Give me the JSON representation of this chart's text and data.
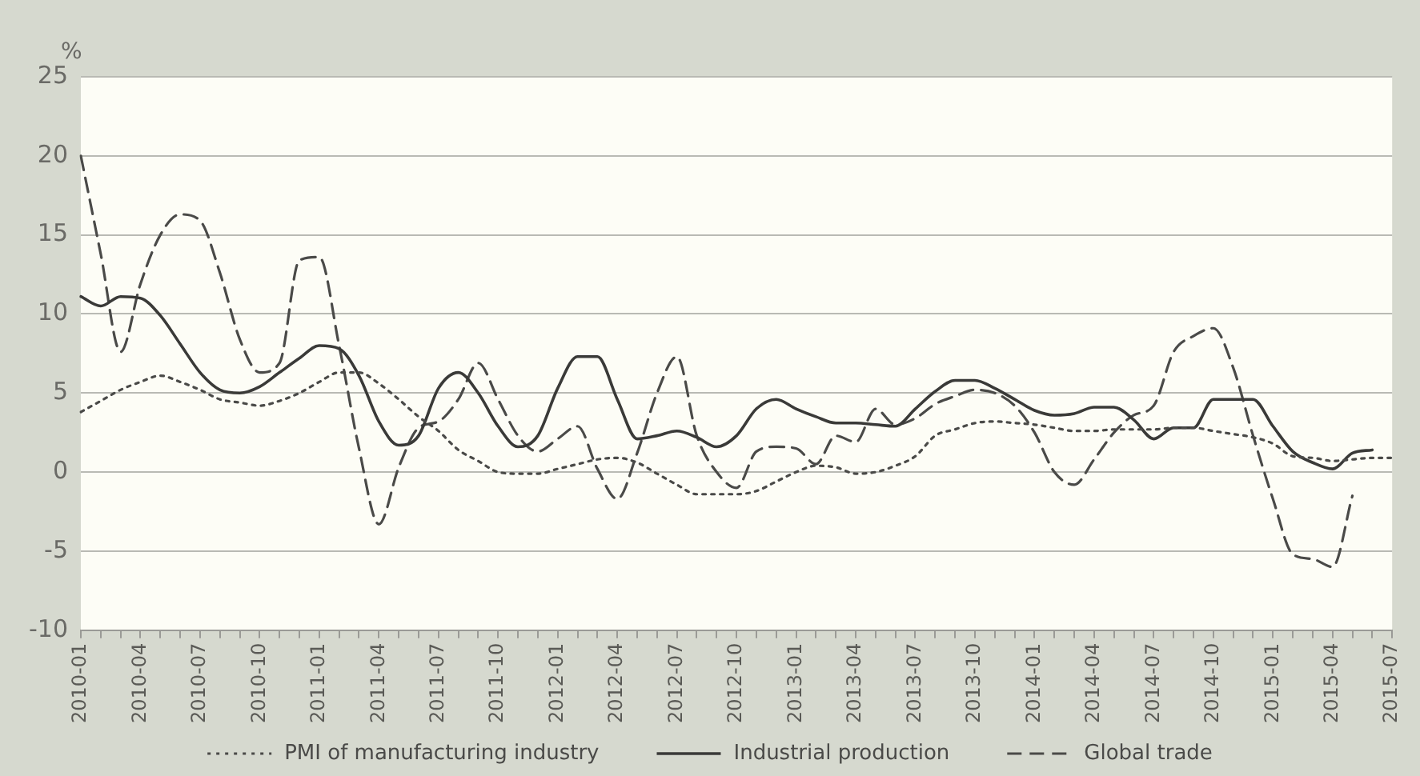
{
  "chart_data": {
    "type": "line",
    "ylabel": "%",
    "categories": [
      "2010-01",
      null,
      null,
      "2010-04",
      null,
      null,
      "2010-07",
      null,
      null,
      "2010-10",
      null,
      null,
      "2011-01",
      null,
      null,
      "2011-04",
      null,
      null,
      "2011-07",
      null,
      null,
      "2011-10",
      null,
      null,
      "2012-01",
      null,
      null,
      "2012-04",
      null,
      null,
      "2012-07",
      null,
      null,
      "2012-10",
      null,
      null,
      "2013-01",
      null,
      null,
      "2013-04",
      null,
      null,
      "2013-07",
      null,
      null,
      "2013-10",
      null,
      null,
      "2014-01",
      null,
      null,
      "2014-04",
      null,
      null,
      "2014-07",
      null,
      null,
      "2014-10",
      null,
      null,
      "2015-01",
      null,
      null,
      "2015-04",
      null,
      null,
      "2015-07"
    ],
    "series": [
      {
        "name": "PMI of manufacturing industry",
        "color": "#4a4a48",
        "line_style": "dotted",
        "values": [
          3.8,
          4.5,
          5.2,
          5.7,
          6.1,
          5.7,
          5.2,
          4.6,
          4.4,
          4.2,
          4.5,
          5.0,
          5.7,
          6.3,
          6.3,
          5.6,
          4.6,
          3.5,
          2.6,
          1.4,
          0.7,
          0.0,
          -0.1,
          -0.1,
          0.2,
          0.5,
          0.8,
          0.9,
          0.6,
          -0.1,
          -0.8,
          -1.4,
          -1.4,
          -1.4,
          -1.2,
          -0.6,
          0.0,
          0.4,
          0.3,
          -0.1,
          0.0,
          0.4,
          1.0,
          2.3,
          2.7,
          3.1,
          3.2,
          3.1,
          3.0,
          2.8,
          2.6,
          2.6,
          2.7,
          2.7,
          2.7,
          2.8,
          2.8,
          2.6,
          2.4,
          2.2,
          1.8,
          1.0,
          0.9,
          0.7,
          0.8,
          0.9,
          0.9
        ]
      },
      {
        "name": "Industrial production",
        "color": "#3a3a38",
        "line_style": "solid",
        "values": [
          11.1,
          10.5,
          11.1,
          11.0,
          9.9,
          8.1,
          6.3,
          5.2,
          5.0,
          5.4,
          6.3,
          7.2,
          8.0,
          7.8,
          6.1,
          3.2,
          1.7,
          2.3,
          5.3,
          6.3,
          5.0,
          2.9,
          1.6,
          2.3,
          5.3,
          7.3,
          7.3,
          4.6,
          2.1,
          2.3,
          2.6,
          2.2,
          1.6,
          2.3,
          4.0,
          4.6,
          4.0,
          3.5,
          3.1,
          3.1,
          3.0,
          2.9,
          4.0,
          5.1,
          5.8,
          5.8,
          5.3,
          4.6,
          3.9,
          3.6,
          3.7,
          4.1,
          4.1,
          3.3,
          2.1,
          2.8,
          2.8,
          4.6,
          4.6,
          4.6,
          2.9,
          1.3,
          0.6,
          0.2,
          1.2,
          1.4,
          null
        ]
      },
      {
        "name": "Global trade",
        "color": "#4a4a48",
        "line_style": "dashed",
        "values": [
          20,
          13.8,
          7.6,
          11.9,
          15.0,
          16.3,
          15.9,
          12.6,
          8.4,
          6.3,
          6.9,
          13.4,
          13.6,
          8.0,
          1.5,
          -3.3,
          0.3,
          2.8,
          3.2,
          4.6,
          6.9,
          4.6,
          2.3,
          1.3,
          2.1,
          2.9,
          0.2,
          -1.7,
          1.2,
          5.0,
          7.3,
          2.3,
          0.0,
          -1.0,
          1.3,
          1.6,
          1.5,
          0.5,
          2.3,
          1.9,
          4.0,
          3.0,
          3.4,
          4.3,
          4.8,
          5.2,
          5.0,
          4.2,
          2.5,
          0.0,
          -0.8,
          0.8,
          2.5,
          3.6,
          4.2,
          7.6,
          8.6,
          9.1,
          6.6,
          2.3,
          -1.7,
          -5.2,
          -5.5,
          -6.0,
          -1.5,
          null,
          null
        ]
      }
    ],
    "ylim": [
      -10,
      25
    ],
    "yticks": [
      -10,
      -5,
      0,
      5,
      10,
      15,
      20,
      25
    ],
    "grid": "y",
    "legend": "bottom",
    "marker": "none"
  }
}
